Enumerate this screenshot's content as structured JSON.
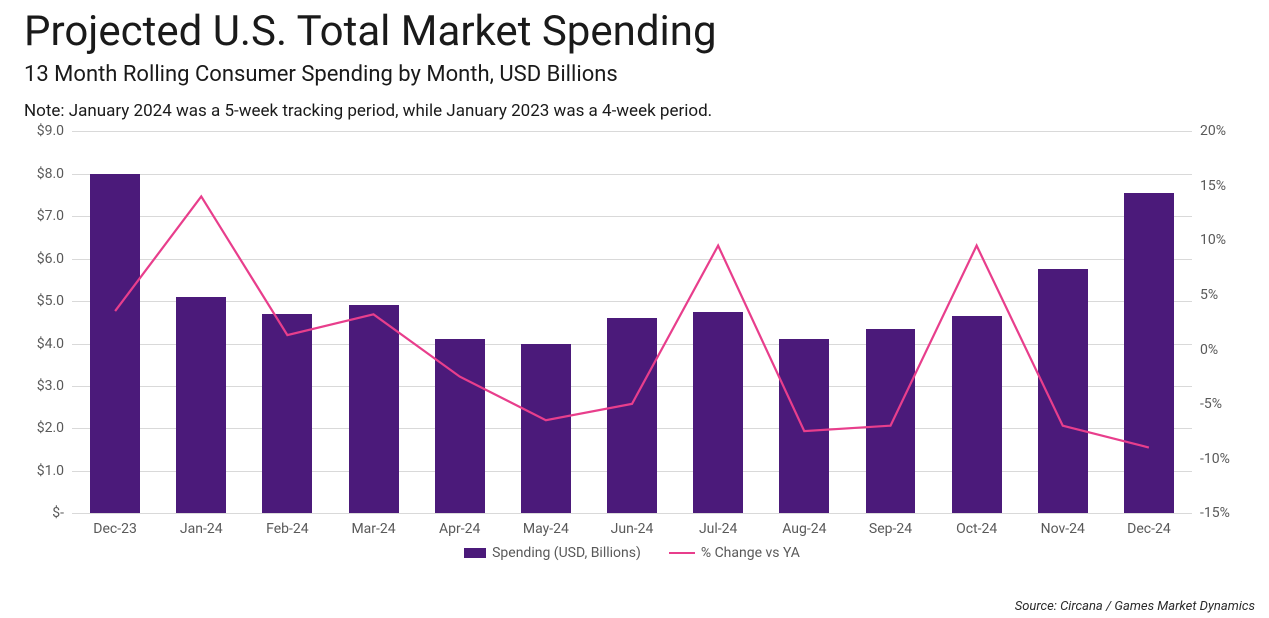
{
  "title": "Projected U.S. Total Market Spending",
  "subtitle": "13 Month Rolling Consumer Spending by Month, USD Billions",
  "note": "Note: January 2024 was a 5-week tracking period, while January 2023 was a 4-week period.",
  "source": "Source: Circana / Games Market Dynamics",
  "chart": {
    "type": "bar+line",
    "background_color": "#ffffff",
    "grid_color": "#d9d9d9",
    "axis_text_color": "#595959",
    "axis_fontsize": 14,
    "categories": [
      "Dec-23",
      "Jan-24",
      "Feb-24",
      "Mar-24",
      "Apr-24",
      "May-24",
      "Jun-24",
      "Jul-24",
      "Aug-24",
      "Sep-24",
      "Oct-24",
      "Nov-24",
      "Dec-24"
    ],
    "bar_series": {
      "label": "Spending (USD, Billions)",
      "color": "#4b1a7a",
      "values": [
        8.0,
        5.1,
        4.7,
        4.9,
        4.1,
        4.0,
        4.6,
        4.75,
        4.1,
        4.35,
        4.65,
        5.75,
        7.55
      ],
      "bar_width": 0.58
    },
    "line_series": {
      "label": "% Change vs YA",
      "color": "#e83e8c",
      "stroke_width": 2.2,
      "values": [
        3.5,
        14.0,
        1.3,
        3.2,
        -2.5,
        -6.5,
        -5.0,
        9.5,
        -7.5,
        -7.0,
        9.5,
        -7.0,
        -9.0
      ]
    },
    "y_left": {
      "min": 0,
      "max": 9,
      "ticks": [
        0,
        1,
        2,
        3,
        4,
        5,
        6,
        7,
        8,
        9
      ],
      "tick_labels": [
        "$-",
        "$1.0",
        "$2.0",
        "$3.0",
        "$4.0",
        "$5.0",
        "$6.0",
        "$7.0",
        "$8.0",
        "$9.0"
      ]
    },
    "y_right": {
      "min": -15,
      "max": 20,
      "ticks": [
        -15,
        -10,
        -5,
        0,
        5,
        10,
        15,
        20
      ],
      "tick_labels": [
        "-15%",
        "-10%",
        "-5%",
        "0%",
        "5%",
        "10%",
        "15%",
        "20%"
      ]
    },
    "legend_position": "bottom-center"
  }
}
